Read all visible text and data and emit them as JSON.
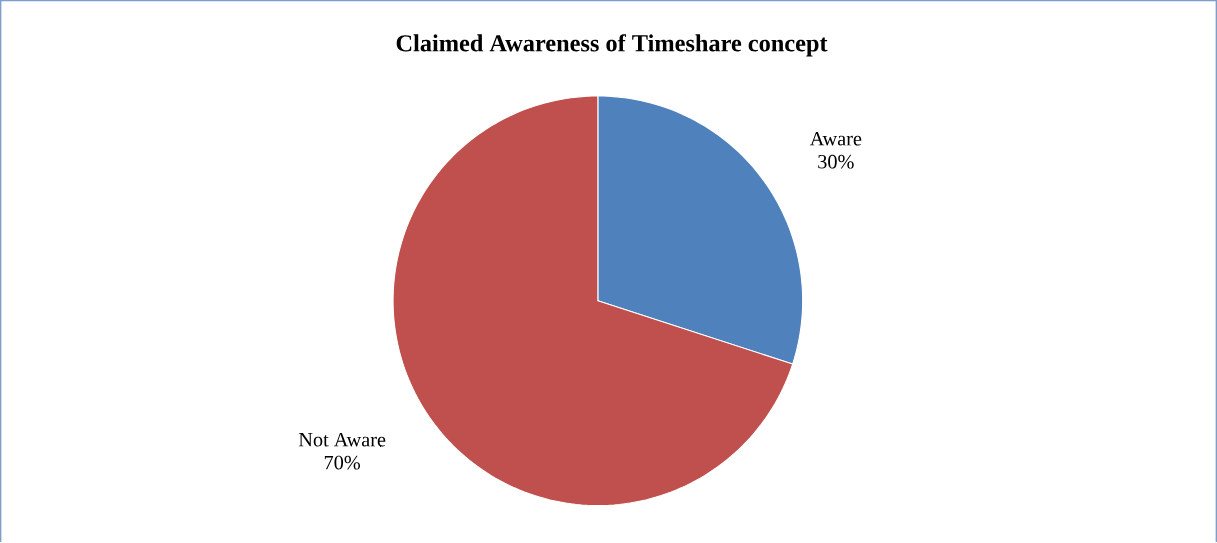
{
  "chart_data": {
    "type": "pie",
    "title": "Claimed Awareness of Timeshare concept",
    "categories": [
      "Aware",
      "Not Aware"
    ],
    "values": [
      30,
      70
    ],
    "colors": [
      "#4f81bd",
      "#c0504d"
    ],
    "value_labels": [
      "30%",
      "70%"
    ]
  }
}
